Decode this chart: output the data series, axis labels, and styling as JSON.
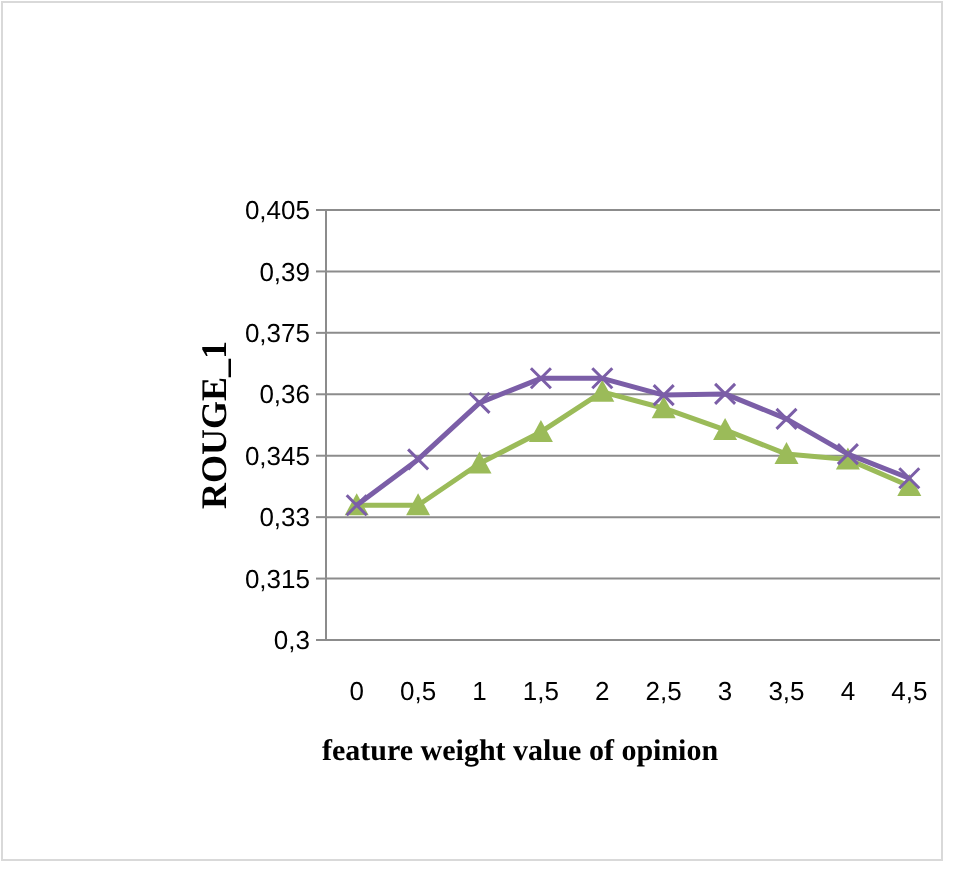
{
  "chart_data": {
    "type": "line",
    "xlabel": "feature weight value of opinion",
    "ylabel": "ROUGE_1",
    "categories": [
      "0",
      "0,5",
      "1",
      "1,5",
      "2",
      "2,5",
      "3",
      "3,5",
      "4",
      "4,5"
    ],
    "series": [
      {
        "color": "#7b5ea7",
        "marker": "cross",
        "values": [
          0.3329,
          0.3441,
          0.3579,
          0.3639,
          0.3639,
          0.3598,
          0.3601,
          0.354,
          0.3454,
          0.3395
        ]
      },
      {
        "color": "#9bbb59",
        "marker": "triangle",
        "values": [
          0.3329,
          0.3329,
          0.3431,
          0.3508,
          0.3606,
          0.3566,
          0.3513,
          0.3454,
          0.3441,
          0.3376
        ]
      }
    ],
    "ylim": [
      0.3,
      0.405
    ],
    "yticks": [
      {
        "value": 0.3,
        "label": "0,3"
      },
      {
        "value": 0.315,
        "label": "0,315"
      },
      {
        "value": 0.33,
        "label": "0,33"
      },
      {
        "value": 0.345,
        "label": "0,345"
      },
      {
        "value": 0.36,
        "label": "0,36"
      },
      {
        "value": 0.375,
        "label": "0,375"
      },
      {
        "value": 0.39,
        "label": "0,39"
      },
      {
        "value": 0.405,
        "label": "0,405"
      }
    ],
    "grid": "y",
    "line_style": "solid"
  }
}
